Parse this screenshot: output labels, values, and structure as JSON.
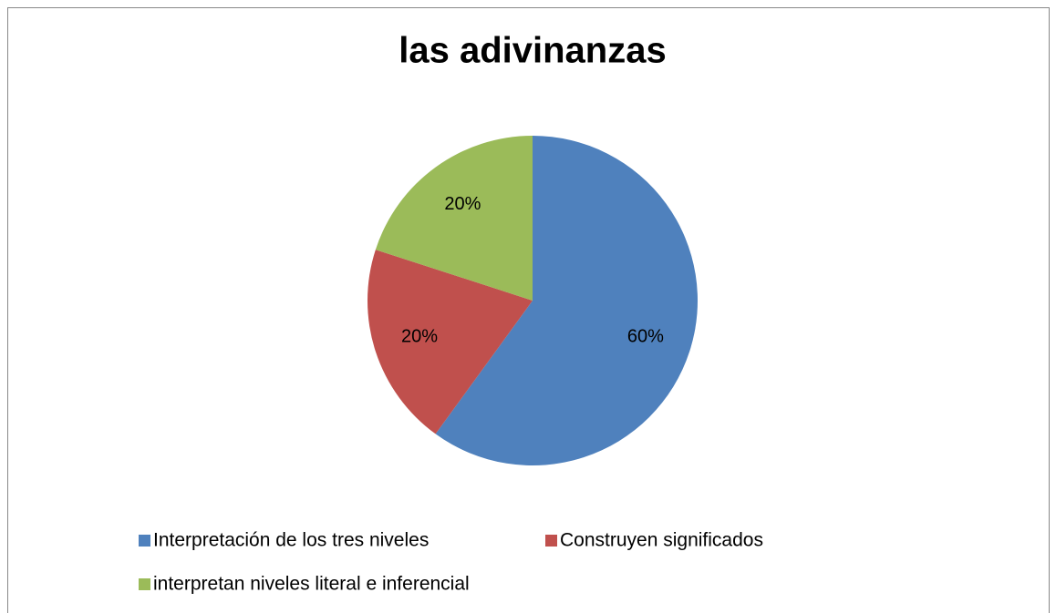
{
  "chart_data": {
    "type": "pie",
    "title": "las adivinanzas",
    "categories": [
      "Interpretación de los tres niveles",
      "Construyen significados",
      "interpretan niveles literal e inferencial"
    ],
    "values": [
      60,
      20,
      20
    ],
    "value_labels": [
      "60%",
      "20%",
      "20%"
    ],
    "colors": [
      "#4f81bd",
      "#c0504d",
      "#9bbb59"
    ],
    "legend": "bottom"
  }
}
